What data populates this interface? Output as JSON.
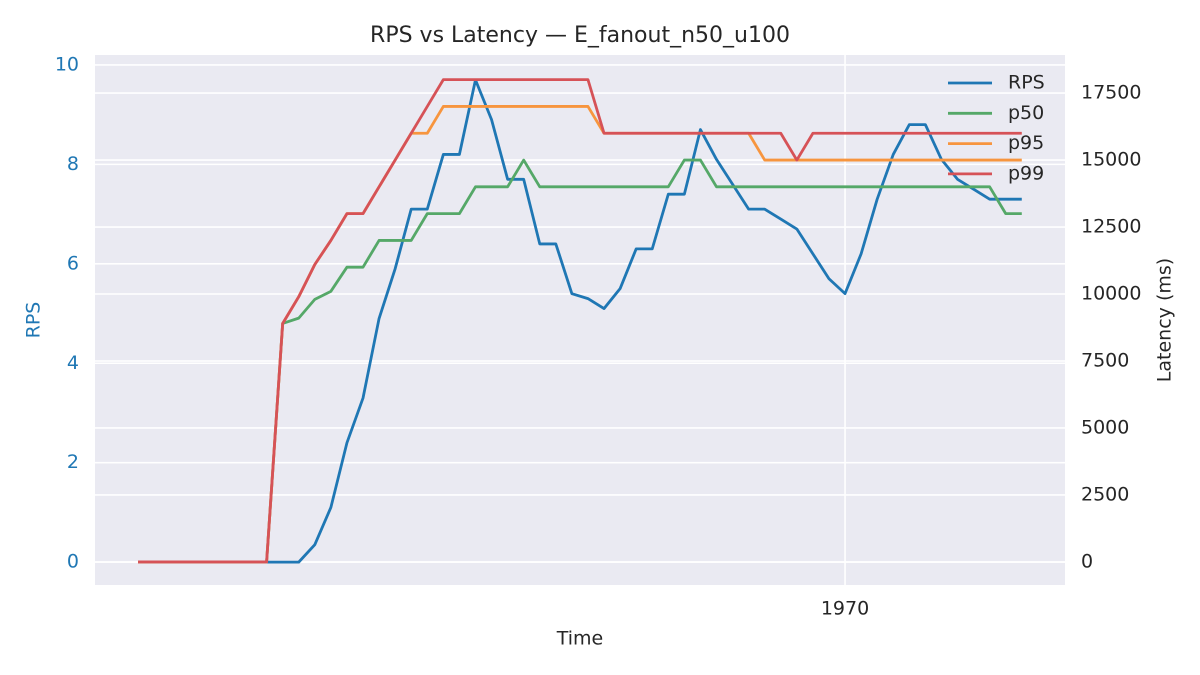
{
  "chart_data": {
    "type": "line",
    "title": "RPS vs Latency — E_fanout_n50_u100",
    "xlabel": "Time",
    "ylabel": "RPS",
    "y2label": "Latency (ms)",
    "x": [
      0,
      1,
      2,
      3,
      4,
      5,
      6,
      7,
      8,
      9,
      10,
      11,
      12,
      13,
      14,
      15,
      16,
      17,
      18,
      19,
      20,
      21,
      22,
      23,
      24,
      25,
      26,
      27,
      28,
      29,
      30,
      31,
      32,
      33,
      34,
      35,
      36,
      37,
      38,
      39,
      40,
      41,
      42,
      43,
      44,
      45,
      46,
      47,
      48,
      49,
      50,
      51,
      52,
      53,
      54,
      55
    ],
    "xlim": [
      -2.68,
      57.69
    ],
    "xticks": [
      {
        "value": 44,
        "label": "1970"
      }
    ],
    "ylim": [
      -0.46,
      10.2
    ],
    "yticks": [
      0,
      2,
      4,
      6,
      8,
      10
    ],
    "y2lim": [
      -860,
      18920
    ],
    "y2ticks": [
      0,
      2500,
      5000,
      7500,
      10000,
      12500,
      15000,
      17500
    ],
    "grid": true,
    "legend": "upper right",
    "ylabel_color": "#1f77b4",
    "series": [
      {
        "name": "RPS",
        "color": "#1f77b4",
        "values": [
          0,
          0,
          0,
          0,
          0,
          0,
          0,
          0,
          0,
          0,
          0,
          0.35,
          1.1,
          2.4,
          3.3,
          4.9,
          5.9,
          7.1,
          7.1,
          8.2,
          8.2,
          9.7,
          8.9,
          7.7,
          7.7,
          6.4,
          6.4,
          5.4,
          5.3,
          5.1,
          5.5,
          6.3,
          6.3,
          7.4,
          7.4,
          8.7,
          8.1,
          7.6,
          7.1,
          7.1,
          6.9,
          6.7,
          6.2,
          5.7,
          5.4,
          6.2,
          7.3,
          8.2,
          8.8,
          8.8,
          8.1,
          7.7,
          7.5,
          7.3,
          7.3,
          7.3
        ]
      },
      {
        "name": "p50",
        "color": "#55a868",
        "axis": "y2",
        "values": [
          0,
          0,
          0,
          0,
          0,
          0,
          0,
          0,
          0,
          8900,
          9100,
          9800,
          10100,
          11000,
          11000,
          12000,
          12000,
          12000,
          13000,
          13000,
          13000,
          14000,
          14000,
          14000,
          15000,
          14000,
          14000,
          14000,
          14000,
          14000,
          14000,
          14000,
          14000,
          14000,
          15000,
          15000,
          14000,
          14000,
          14000,
          14000,
          14000,
          14000,
          14000,
          14000,
          14000,
          14000,
          14000,
          14000,
          14000,
          14000,
          14000,
          14000,
          14000,
          14000,
          13000,
          13000
        ]
      },
      {
        "name": "p95",
        "color": "#f7953e",
        "axis": "y2",
        "values": [
          0,
          0,
          0,
          0,
          0,
          0,
          0,
          0,
          0,
          8900,
          9900,
          11100,
          12000,
          13000,
          13000,
          14000,
          15000,
          16000,
          16000,
          17000,
          17000,
          17000,
          17000,
          17000,
          17000,
          17000,
          17000,
          17000,
          17000,
          16000,
          16000,
          16000,
          16000,
          16000,
          16000,
          16000,
          16000,
          16000,
          16000,
          15000,
          15000,
          15000,
          15000,
          15000,
          15000,
          15000,
          15000,
          15000,
          15000,
          15000,
          15000,
          15000,
          15000,
          15000,
          15000,
          15000
        ]
      },
      {
        "name": "p99",
        "color": "#d65257",
        "axis": "y2",
        "values": [
          0,
          0,
          0,
          0,
          0,
          0,
          0,
          0,
          0,
          8900,
          9900,
          11100,
          12000,
          13000,
          13000,
          14000,
          15000,
          16000,
          17000,
          18000,
          18000,
          18000,
          18000,
          18000,
          18000,
          18000,
          18000,
          18000,
          18000,
          16000,
          16000,
          16000,
          16000,
          16000,
          16000,
          16000,
          16000,
          16000,
          16000,
          16000,
          16000,
          15000,
          16000,
          16000,
          16000,
          16000,
          16000,
          16000,
          16000,
          16000,
          16000,
          16000,
          16000,
          16000,
          16000,
          16000
        ]
      }
    ]
  }
}
